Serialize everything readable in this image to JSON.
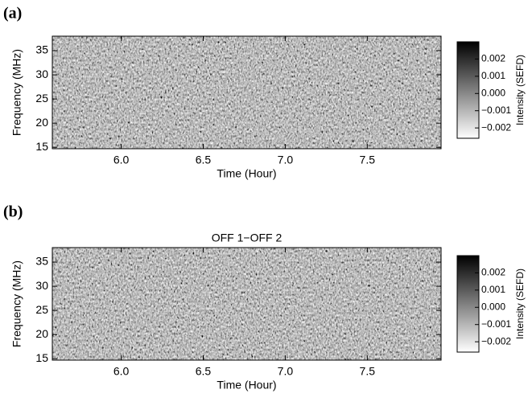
{
  "chart_data": [
    {
      "type": "heatmap",
      "panel_label": "(a)",
      "xlabel": "Time (Hour)",
      "ylabel": "Frequency (MHz)",
      "xlim": [
        5.58,
        7.95
      ],
      "xticks": [
        {
          "value": 6,
          "label": "6.0"
        },
        6.5,
        {
          "value": 7,
          "label": "7.0"
        },
        7.5
      ],
      "ylim": [
        14.7,
        38
      ],
      "yticks": [
        15,
        20,
        25,
        30,
        35
      ],
      "colorbar": {
        "label": "Intensity (SEFD)",
        "lim": [
          -0.0026,
          0.003
        ],
        "ticks": [
          0.002,
          0.001,
          {
            "value": 0,
            "label": "0.000"
          },
          {
            "value": -0.001,
            "label": "−0.001"
          },
          {
            "value": -0.002,
            "label": "−0.002"
          }
        ]
      }
    },
    {
      "type": "heatmap",
      "panel_label": "(b)",
      "title": "OFF 1−OFF 2",
      "xlabel": "Time (Hour)",
      "ylabel": "Frequency (MHz)",
      "xlim": [
        5.58,
        7.95
      ],
      "xticks": [
        {
          "value": 6,
          "label": "6.0"
        },
        6.5,
        {
          "value": 7,
          "label": "7.0"
        },
        7.5
      ],
      "ylim": [
        14.7,
        38
      ],
      "yticks": [
        15,
        20,
        25,
        30,
        35
      ],
      "colorbar": {
        "label": "Intensity (SEFD)",
        "lim": [
          -0.0026,
          0.003
        ],
        "ticks": [
          0.002,
          0.001,
          {
            "value": 0,
            "label": "0.000"
          },
          {
            "value": -0.001,
            "label": "−0.001"
          },
          {
            "value": -0.002,
            "label": "−0.002"
          }
        ]
      }
    }
  ]
}
